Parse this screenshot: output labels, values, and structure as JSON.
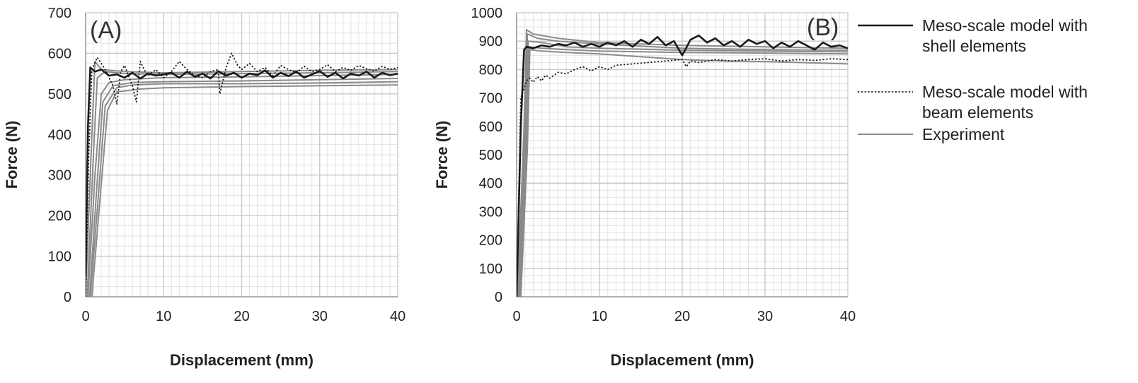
{
  "legend": [
    {
      "label_line1": "Meso-scale model with",
      "label_line2": "shell elements",
      "style": "shell"
    },
    {
      "label_line1": "Meso-scale model with",
      "label_line2": "beam elements",
      "style": "beam"
    },
    {
      "label_line1": "Experiment",
      "label_line2": "",
      "style": "experiment"
    }
  ],
  "colors": {
    "shell": "#1a1a1a",
    "beam": "#1a1a1a",
    "experiment": "#8a8a8a",
    "grid_major": "#c8c8c8",
    "grid_minor": "#e2e2e2"
  },
  "chart_data": [
    {
      "type": "line",
      "panel_label": "(A)",
      "xlabel": "Displacement (mm)",
      "ylabel": "Force (N)",
      "xlim": [
        0,
        40
      ],
      "ylim": [
        0,
        700
      ],
      "xticks": [
        0,
        10,
        20,
        30,
        40
      ],
      "yticks": [
        0,
        100,
        200,
        300,
        400,
        500,
        600,
        700
      ],
      "grid": true,
      "series": [
        {
          "style": "shell",
          "x": [
            0,
            0.3,
            0.6,
            1.2,
            2,
            3,
            4,
            5,
            6,
            7,
            8,
            9,
            10,
            11,
            12,
            13,
            14,
            15,
            16,
            17,
            18,
            19,
            20,
            21,
            22,
            23,
            24,
            25,
            26,
            27,
            28,
            29,
            30,
            31,
            32,
            33,
            34,
            35,
            36,
            37,
            38,
            39,
            40
          ],
          "y": [
            50,
            420,
            565,
            555,
            560,
            545,
            548,
            540,
            552,
            538,
            550,
            545,
            548,
            552,
            540,
            555,
            542,
            550,
            538,
            556,
            545,
            552,
            540,
            550,
            546,
            558,
            540,
            552,
            544,
            555,
            540,
            548,
            556,
            542,
            552,
            538,
            550,
            545,
            555,
            540,
            552,
            546,
            550
          ]
        },
        {
          "style": "beam",
          "x": [
            0,
            0.4,
            0.8,
            1.5,
            2,
            2.5,
            3,
            3.5,
            4,
            4.5,
            5,
            5.5,
            6,
            6.5,
            7,
            7.5,
            8,
            9,
            10,
            11,
            12,
            13,
            14,
            15,
            16,
            17,
            17.2,
            18,
            18.7,
            19.5,
            20,
            21,
            22,
            23,
            24,
            25,
            26,
            27,
            28,
            29,
            30,
            31,
            32,
            33,
            34,
            35,
            36,
            37,
            38,
            39,
            40
          ],
          "y": [
            0,
            350,
            560,
            590,
            575,
            560,
            540,
            520,
            475,
            555,
            570,
            545,
            520,
            480,
            580,
            560,
            545,
            560,
            540,
            555,
            580,
            560,
            545,
            540,
            555,
            560,
            500,
            565,
            600,
            570,
            560,
            575,
            555,
            565,
            545,
            570,
            560,
            552,
            568,
            555,
            560,
            572,
            555,
            565,
            558,
            570,
            562,
            556,
            568,
            560,
            565
          ]
        },
        {
          "style": "experiment",
          "x": [
            0,
            0.8,
            1.2,
            2,
            5,
            10,
            20,
            30,
            40
          ],
          "y": [
            0,
            400,
            580,
            560,
            555,
            552,
            555,
            558,
            560
          ]
        },
        {
          "style": "experiment",
          "x": [
            0.2,
            1.0,
            1.5,
            2.5,
            5,
            10,
            20,
            30,
            40
          ],
          "y": [
            0,
            350,
            540,
            555,
            550,
            548,
            550,
            552,
            555
          ]
        },
        {
          "style": "experiment",
          "x": [
            0.3,
            1.2,
            2,
            3,
            5,
            10,
            20,
            30,
            40
          ],
          "y": [
            0,
            300,
            500,
            528,
            535,
            540,
            542,
            545,
            548
          ]
        },
        {
          "style": "experiment",
          "x": [
            0.5,
            1.4,
            2.2,
            3.5,
            6,
            10,
            20,
            30,
            40
          ],
          "y": [
            0,
            260,
            480,
            520,
            528,
            530,
            532,
            535,
            538
          ]
        },
        {
          "style": "experiment",
          "x": [
            0.6,
            1.6,
            2.5,
            4,
            6,
            10,
            20,
            30,
            40
          ],
          "y": [
            0,
            240,
            470,
            515,
            522,
            525,
            525,
            527,
            530
          ]
        },
        {
          "style": "experiment",
          "x": [
            0.8,
            1.8,
            2.8,
            4,
            7,
            10,
            20,
            30,
            40
          ],
          "y": [
            0,
            230,
            460,
            505,
            512,
            515,
            518,
            520,
            522
          ]
        }
      ]
    },
    {
      "type": "line",
      "panel_label": "(B)",
      "xlabel": "Displacement (mm)",
      "ylabel": "Force (N)",
      "xlim": [
        0,
        40
      ],
      "ylim": [
        0,
        1000
      ],
      "xticks": [
        0,
        10,
        20,
        30,
        40
      ],
      "yticks": [
        0,
        100,
        200,
        300,
        400,
        500,
        600,
        700,
        800,
        900,
        1000
      ],
      "grid": true,
      "series": [
        {
          "style": "shell",
          "x": [
            0,
            0.5,
            0.9,
            1.2,
            2,
            3,
            4,
            5,
            6,
            7,
            8,
            9,
            10,
            11,
            12,
            13,
            14,
            15,
            16,
            17,
            18,
            19,
            20,
            21,
            22,
            23,
            24,
            25,
            26,
            27,
            28,
            29,
            30,
            31,
            32,
            33,
            34,
            35,
            36,
            37,
            38,
            39,
            40
          ],
          "y": [
            0,
            600,
            870,
            880,
            875,
            885,
            880,
            890,
            885,
            895,
            880,
            890,
            880,
            895,
            885,
            900,
            880,
            905,
            890,
            915,
            885,
            900,
            850,
            905,
            920,
            895,
            910,
            885,
            900,
            880,
            905,
            890,
            900,
            875,
            895,
            880,
            900,
            885,
            870,
            895,
            880,
            885,
            875
          ]
        },
        {
          "style": "beam",
          "x": [
            0,
            0.5,
            1.2,
            1.6,
            2,
            2.5,
            3,
            3.5,
            4,
            5,
            6,
            7,
            8,
            9,
            10,
            11,
            12,
            14,
            16,
            18,
            20,
            20.5,
            21,
            22,
            24,
            26,
            28,
            30,
            32,
            34,
            36,
            38,
            40
          ],
          "y": [
            0,
            700,
            760,
            770,
            755,
            775,
            760,
            780,
            770,
            790,
            785,
            800,
            810,
            795,
            810,
            800,
            815,
            820,
            825,
            830,
            835,
            810,
            830,
            825,
            835,
            830,
            835,
            838,
            830,
            835,
            832,
            838,
            835
          ]
        },
        {
          "style": "experiment",
          "x": [
            0.1,
            0.9,
            1.2,
            2,
            5,
            10,
            20,
            30,
            40
          ],
          "y": [
            0,
            600,
            940,
            925,
            910,
            895,
            885,
            880,
            875
          ]
        },
        {
          "style": "experiment",
          "x": [
            0.2,
            1.0,
            1.3,
            2.5,
            5,
            10,
            20,
            30,
            40
          ],
          "y": [
            0,
            580,
            925,
            910,
            900,
            890,
            875,
            870,
            868
          ]
        },
        {
          "style": "experiment",
          "x": [
            0.3,
            1.1,
            1.4,
            3,
            6,
            10,
            20,
            30,
            40
          ],
          "y": [
            0,
            560,
            900,
            895,
            880,
            875,
            868,
            865,
            862
          ]
        },
        {
          "style": "experiment",
          "x": [
            0.4,
            1.2,
            1.5,
            3,
            6,
            10,
            20,
            30,
            40
          ],
          "y": [
            0,
            540,
            880,
            875,
            870,
            865,
            860,
            858,
            855
          ]
        },
        {
          "style": "experiment",
          "x": [
            0.5,
            1.3,
            1.6,
            3,
            6,
            10,
            15,
            20,
            25,
            30,
            40
          ],
          "y": [
            0,
            520,
            870,
            865,
            860,
            855,
            845,
            835,
            830,
            828,
            820
          ]
        }
      ]
    }
  ]
}
